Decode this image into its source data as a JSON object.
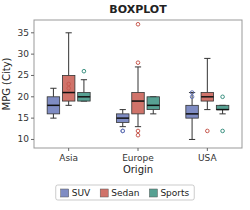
{
  "chart_data": {
    "type": "box",
    "title": "BOXPLOT",
    "xlabel": "Origin",
    "ylabel": "MPG (City)",
    "categories": [
      "Asia",
      "Europe",
      "USA"
    ],
    "series": [
      {
        "name": "SUV",
        "color": "#6878b8",
        "values": [
          {
            "med": 18,
            "q1": 16,
            "q3": 20,
            "whislo": 15,
            "whishi": 22,
            "fliers": []
          },
          {
            "med": 15,
            "q1": 14,
            "q3": 16,
            "whislo": 13,
            "whishi": 17,
            "fliers": [
              12,
              12
            ]
          },
          {
            "med": 16,
            "q1": 15,
            "q3": 18,
            "whislo": 10,
            "whishi": 21,
            "fliers": [
              20,
              21
            ]
          }
        ]
      },
      {
        "name": "Sedan",
        "color": "#c85a50",
        "values": [
          {
            "med": 21,
            "q1": 19,
            "q3": 25,
            "whislo": 18,
            "whishi": 35,
            "fliers": [
              22,
              23
            ]
          },
          {
            "med": 19,
            "q1": 16,
            "q3": 21,
            "whislo": 13,
            "whishi": 27,
            "fliers": [
              11,
              12,
              28,
              37
            ]
          },
          {
            "med": 20,
            "q1": 19,
            "q3": 21,
            "whislo": 17,
            "whishi": 29,
            "fliers": [
              12
            ]
          }
        ]
      },
      {
        "name": "Sports",
        "color": "#3a9080",
        "values": [
          {
            "med": 20,
            "q1": 19,
            "q3": 21,
            "whislo": 19,
            "whishi": 24,
            "fliers": [
              26
            ]
          },
          {
            "med": 18,
            "q1": 17,
            "q3": 20,
            "whislo": 16,
            "whishi": 20,
            "fliers": []
          },
          {
            "med": 17,
            "q1": 17,
            "q3": 18,
            "whislo": 16,
            "whishi": 18,
            "fliers": [
              12,
              20
            ]
          }
        ]
      }
    ],
    "ylim": [
      8,
      38
    ],
    "yticks": [
      10,
      15,
      20,
      25,
      30,
      35
    ],
    "grid": false,
    "legend": "bottom"
  }
}
